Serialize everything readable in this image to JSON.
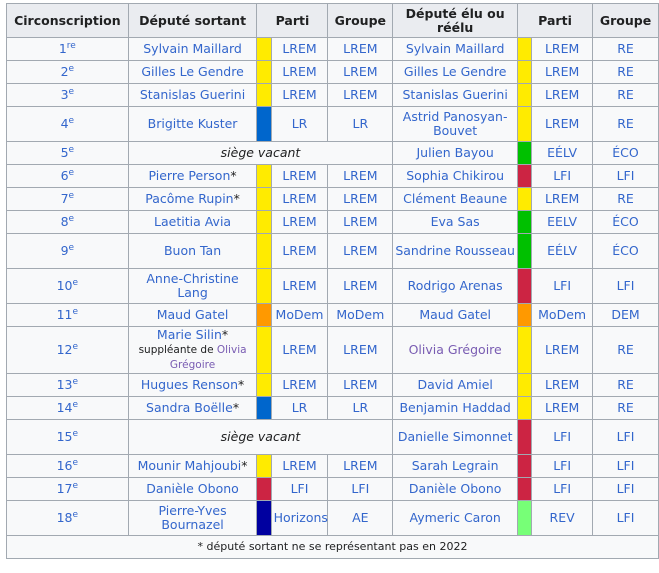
{
  "headers": {
    "circ": "Circonscription",
    "sortant": "Député sortant",
    "parti1": "Parti",
    "groupe1": "Groupe",
    "elu": "Député élu ou réélu",
    "parti2": "Parti",
    "groupe2": "Groupe"
  },
  "vacant_label": "siège vacant",
  "suppleante_prefix": "suppléante de",
  "colors": {
    "LREM": "#ffeb00",
    "LR": "#0066cc",
    "MoDem": "#ff9900",
    "LFI": "#cc2443",
    "EELV": "#00c000",
    "REV": "#77ff77",
    "Horizons": "#0000a0"
  },
  "rows": [
    {
      "num": "1",
      "sup": "re",
      "sortant": "Sylvain Maillard",
      "sortant_note": "",
      "p1": "LREM",
      "c1": "LREM",
      "g1": "LREM",
      "elu": "Sylvain Maillard",
      "p2": "LREM",
      "c2": "LREM",
      "g2": "RE"
    },
    {
      "num": "2",
      "sup": "e",
      "sortant": "Gilles Le Gendre",
      "sortant_note": "",
      "p1": "LREM",
      "c1": "LREM",
      "g1": "LREM",
      "elu": "Gilles Le Gendre",
      "p2": "LREM",
      "c2": "LREM",
      "g2": "RE"
    },
    {
      "num": "3",
      "sup": "e",
      "sortant": "Stanislas Guerini",
      "sortant_note": "",
      "p1": "LREM",
      "c1": "LREM",
      "g1": "LREM",
      "elu": "Stanislas Guerini",
      "p2": "LREM",
      "c2": "LREM",
      "g2": "RE"
    },
    {
      "num": "4",
      "sup": "e",
      "sortant": "Brigitte Kuster",
      "sortant_note": "",
      "p1": "LR",
      "c1": "LR",
      "g1": "LR",
      "elu": "Astrid Panosyan-Bouvet",
      "p2": "LREM",
      "c2": "LREM",
      "g2": "RE",
      "tall": true
    },
    {
      "num": "5",
      "sup": "e",
      "vacant": true,
      "elu": "Julien Bayou",
      "p2": "EÉLV",
      "c2": "EELV",
      "g2": "ÉCO"
    },
    {
      "num": "6",
      "sup": "e",
      "sortant": "Pierre Person",
      "sortant_note": "*",
      "p1": "LREM",
      "c1": "LREM",
      "g1": "LREM",
      "elu": "Sophia Chikirou",
      "p2": "LFI",
      "c2": "LFI",
      "g2": "LFI"
    },
    {
      "num": "7",
      "sup": "e",
      "sortant": "Pacôme Rupin",
      "sortant_note": "*",
      "p1": "LREM",
      "c1": "LREM",
      "g1": "LREM",
      "elu": "Clément Beaune",
      "p2": "LREM",
      "c2": "LREM",
      "g2": "RE"
    },
    {
      "num": "8",
      "sup": "e",
      "sortant": "Laetitia Avia",
      "sortant_note": "",
      "p1": "LREM",
      "c1": "LREM",
      "g1": "LREM",
      "elu": "Eva Sas",
      "p2": "EELV",
      "c2": "EELV",
      "g2": "ÉCO"
    },
    {
      "num": "9",
      "sup": "e",
      "sortant": "Buon Tan",
      "sortant_note": "",
      "p1": "LREM",
      "c1": "LREM",
      "g1": "LREM",
      "elu": "Sandrine Rousseau",
      "p2": "EÉLV",
      "c2": "EELV",
      "g2": "ÉCO",
      "tall": true
    },
    {
      "num": "10",
      "sup": "e",
      "sortant": "Anne-Christine Lang",
      "sortant_note": "",
      "p1": "LREM",
      "c1": "LREM",
      "g1": "LREM",
      "elu": "Rodrigo Arenas",
      "p2": "LFI",
      "c2": "LFI",
      "g2": "LFI",
      "tall": true
    },
    {
      "num": "11",
      "sup": "e",
      "sortant": "Maud Gatel",
      "sortant_note": "",
      "p1": "MoDem",
      "c1": "MoDem",
      "g1": "MoDem",
      "elu": "Maud Gatel",
      "p2": "MoDem",
      "c2": "MoDem",
      "g2": "DEM"
    },
    {
      "num": "12",
      "sup": "e",
      "sortant": "Marie Silin",
      "sortant_note": "*",
      "suppleante": "Olivia Grégoire",
      "p1": "LREM",
      "c1": "LREM",
      "g1": "LREM",
      "elu": "Olivia Grégoire",
      "elu_visited": true,
      "p2": "LREM",
      "c2": "LREM",
      "g2": "RE",
      "xtall": true
    },
    {
      "num": "13",
      "sup": "e",
      "sortant": "Hugues Renson",
      "sortant_note": "*",
      "p1": "LREM",
      "c1": "LREM",
      "g1": "LREM",
      "elu": "David Amiel",
      "p2": "LREM",
      "c2": "LREM",
      "g2": "RE"
    },
    {
      "num": "14",
      "sup": "e",
      "sortant": "Sandra Boëlle",
      "sortant_note": "*",
      "p1": "LR",
      "c1": "LR",
      "g1": "LR",
      "elu": "Benjamin Haddad",
      "p2": "LREM",
      "c2": "LREM",
      "g2": "RE"
    },
    {
      "num": "15",
      "sup": "e",
      "vacant": true,
      "elu": "Danielle Simonnet",
      "p2": "LFI",
      "c2": "LFI",
      "g2": "LFI",
      "tall": true
    },
    {
      "num": "16",
      "sup": "e",
      "sortant": "Mounir Mahjoubi",
      "sortant_note": "*",
      "p1": "LREM",
      "c1": "LREM",
      "g1": "LREM",
      "elu": "Sarah Legrain",
      "p2": "LFI",
      "c2": "LFI",
      "g2": "LFI"
    },
    {
      "num": "17",
      "sup": "e",
      "sortant": "Danièle Obono",
      "sortant_note": "",
      "p1": "LFI",
      "c1": "LFI",
      "g1": "LFI",
      "elu": "Danièle Obono",
      "p2": "LFI",
      "c2": "LFI",
      "g2": "LFI"
    },
    {
      "num": "18",
      "sup": "e",
      "sortant": "Pierre-Yves Bournazel",
      "sortant_note": "",
      "p1": "Horizons",
      "c1": "Horizons",
      "g1": "AE",
      "elu": "Aymeric Caron",
      "p2": "REV",
      "c2": "REV",
      "g2": "LFI",
      "tall": true
    }
  ],
  "footnote": "* député sortant ne se représentant pas en 2022"
}
